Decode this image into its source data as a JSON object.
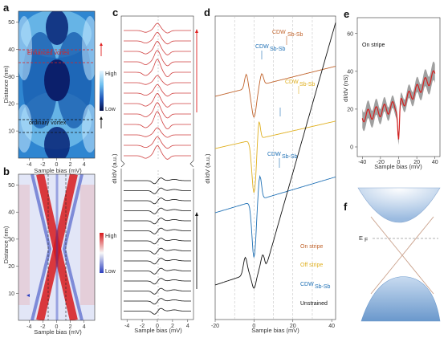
{
  "panels": {
    "a": {
      "label": "a",
      "ylabel": "Distance (nm)",
      "xlabel": "Sample bias (mV)",
      "yticks": [
        "10",
        "20",
        "30",
        "40",
        "50"
      ],
      "xticks": [
        "-4",
        "-2",
        "0",
        "2",
        "4"
      ],
      "colorbar_high": "High",
      "colorbar_low": "Low",
      "annotation_stripe": "Enhanced vortex",
      "annotation_ordinary": "ordinary vortex"
    },
    "b": {
      "label": "b",
      "ylabel": "Distance (nm)",
      "xlabel": "Sample bias (mV)",
      "yticks": [
        "10",
        "20",
        "30",
        "40",
        "50"
      ],
      "xticks": [
        "-4",
        "-2",
        "0",
        "2",
        "4"
      ],
      "colorbar_high": "High",
      "colorbar_low": "Low"
    },
    "c": {
      "label": "c",
      "ylabel": "dI/dV (a.u.)",
      "xlabel": "Sample bias (mV)",
      "xticks": [
        "-4",
        "-2",
        "0",
        "2",
        "4"
      ]
    },
    "d": {
      "label": "d",
      "ylabel": "dI/dV (a.u.)",
      "xlabel": "Sample bias (mV)",
      "xticks": [
        "-20",
        "0",
        "20",
        "40"
      ],
      "cdw_labels": [
        "CDW",
        "CDW",
        "CDW",
        "CDW"
      ],
      "cdw_subscripts": [
        "Sb-Sb",
        "Sb-Sb",
        "Sb-Sb",
        "Sb-Sb"
      ],
      "legend": [
        "On stripe",
        "Off stripe",
        "CDW",
        "Unstrained"
      ],
      "legend_cdw_sub": "Sb-Sb",
      "colors": [
        "#c0622a",
        "#e0b020",
        "#1f70b5",
        "#111111"
      ]
    },
    "e": {
      "label": "e",
      "ylabel": "dI/dV (nS)",
      "xlabel": "Sample bias (mV)",
      "yticks": [
        "0",
        "20",
        "40",
        "60"
      ],
      "xticks": [
        "-40",
        "-20",
        "0",
        "20",
        "40"
      ],
      "inset_title": "On stripe"
    },
    "f": {
      "label": "f",
      "fermi_label": "E",
      "fermi_sub": "F"
    }
  }
}
